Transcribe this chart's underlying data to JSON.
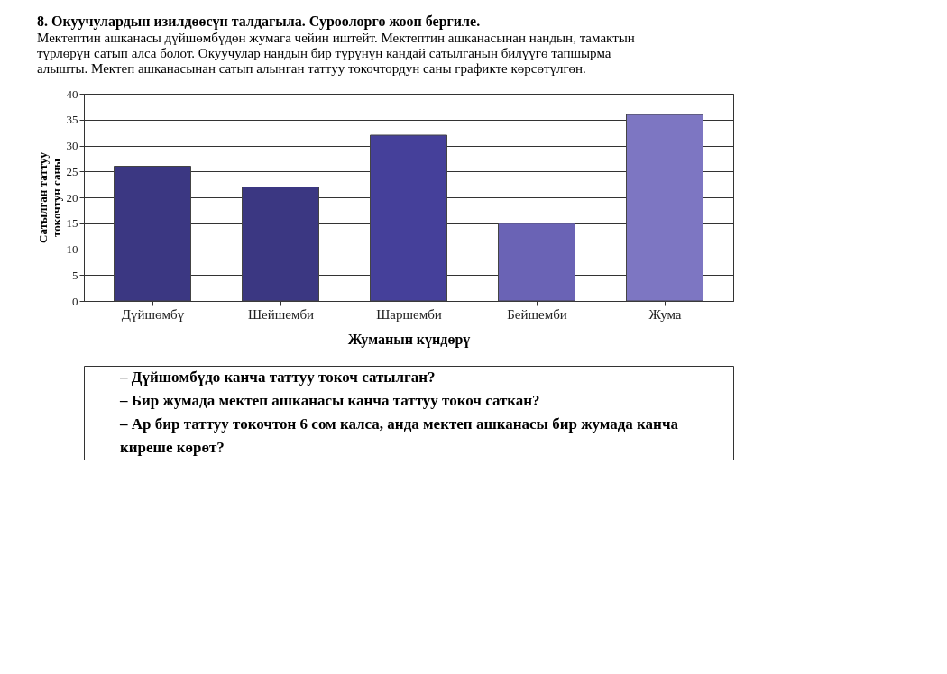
{
  "chart_data": {
    "type": "bar",
    "title": "8. Окуучулардын изилдөөсүн талдагыла. Суроолорго жооп бергиле.",
    "subtitle": "Мектептин ашканасы дүйшөмбүдөн жумага чейин иштейт. Мектептин ашканасынан нандын, тамактын түрлөрүн сатып алса болот. Окуучулар нандын бир түрүнүн кандай сатылганын билүүгө тапшырма алышты. Мектеп ашканасынан сатып алынган таттуу токочтордун саны графикте көрсөтүлгөн.",
    "categories": [
      "Дүйшөмбү",
      "Шейшемби",
      "Шаршемби",
      "Бейшемби",
      "Жума"
    ],
    "values": [
      26,
      22,
      32,
      15,
      36
    ],
    "colors": [
      "#3b3782",
      "#3b3782",
      "#45409a",
      "#6a63b5",
      "#7d76c2"
    ],
    "xlabel": "Жуманын күндөрү",
    "ylabel": "Сатылган таттуу токочтун саны",
    "ylim": [
      0,
      40
    ],
    "yticks": [
      0,
      5,
      10,
      15,
      20,
      25,
      30,
      35,
      40
    ],
    "grid": "y",
    "annotations": [
      "– Дүйшөмбүдө канча таттуу токоч сатылган?",
      "– Бир жумада мектеп ашканасы канча таттуу токоч саткан?",
      "– Ар бир таттуу токочтон 6 сом калса, анда мектеп ашканасы бир жумада канча киреше көрөт?"
    ]
  }
}
